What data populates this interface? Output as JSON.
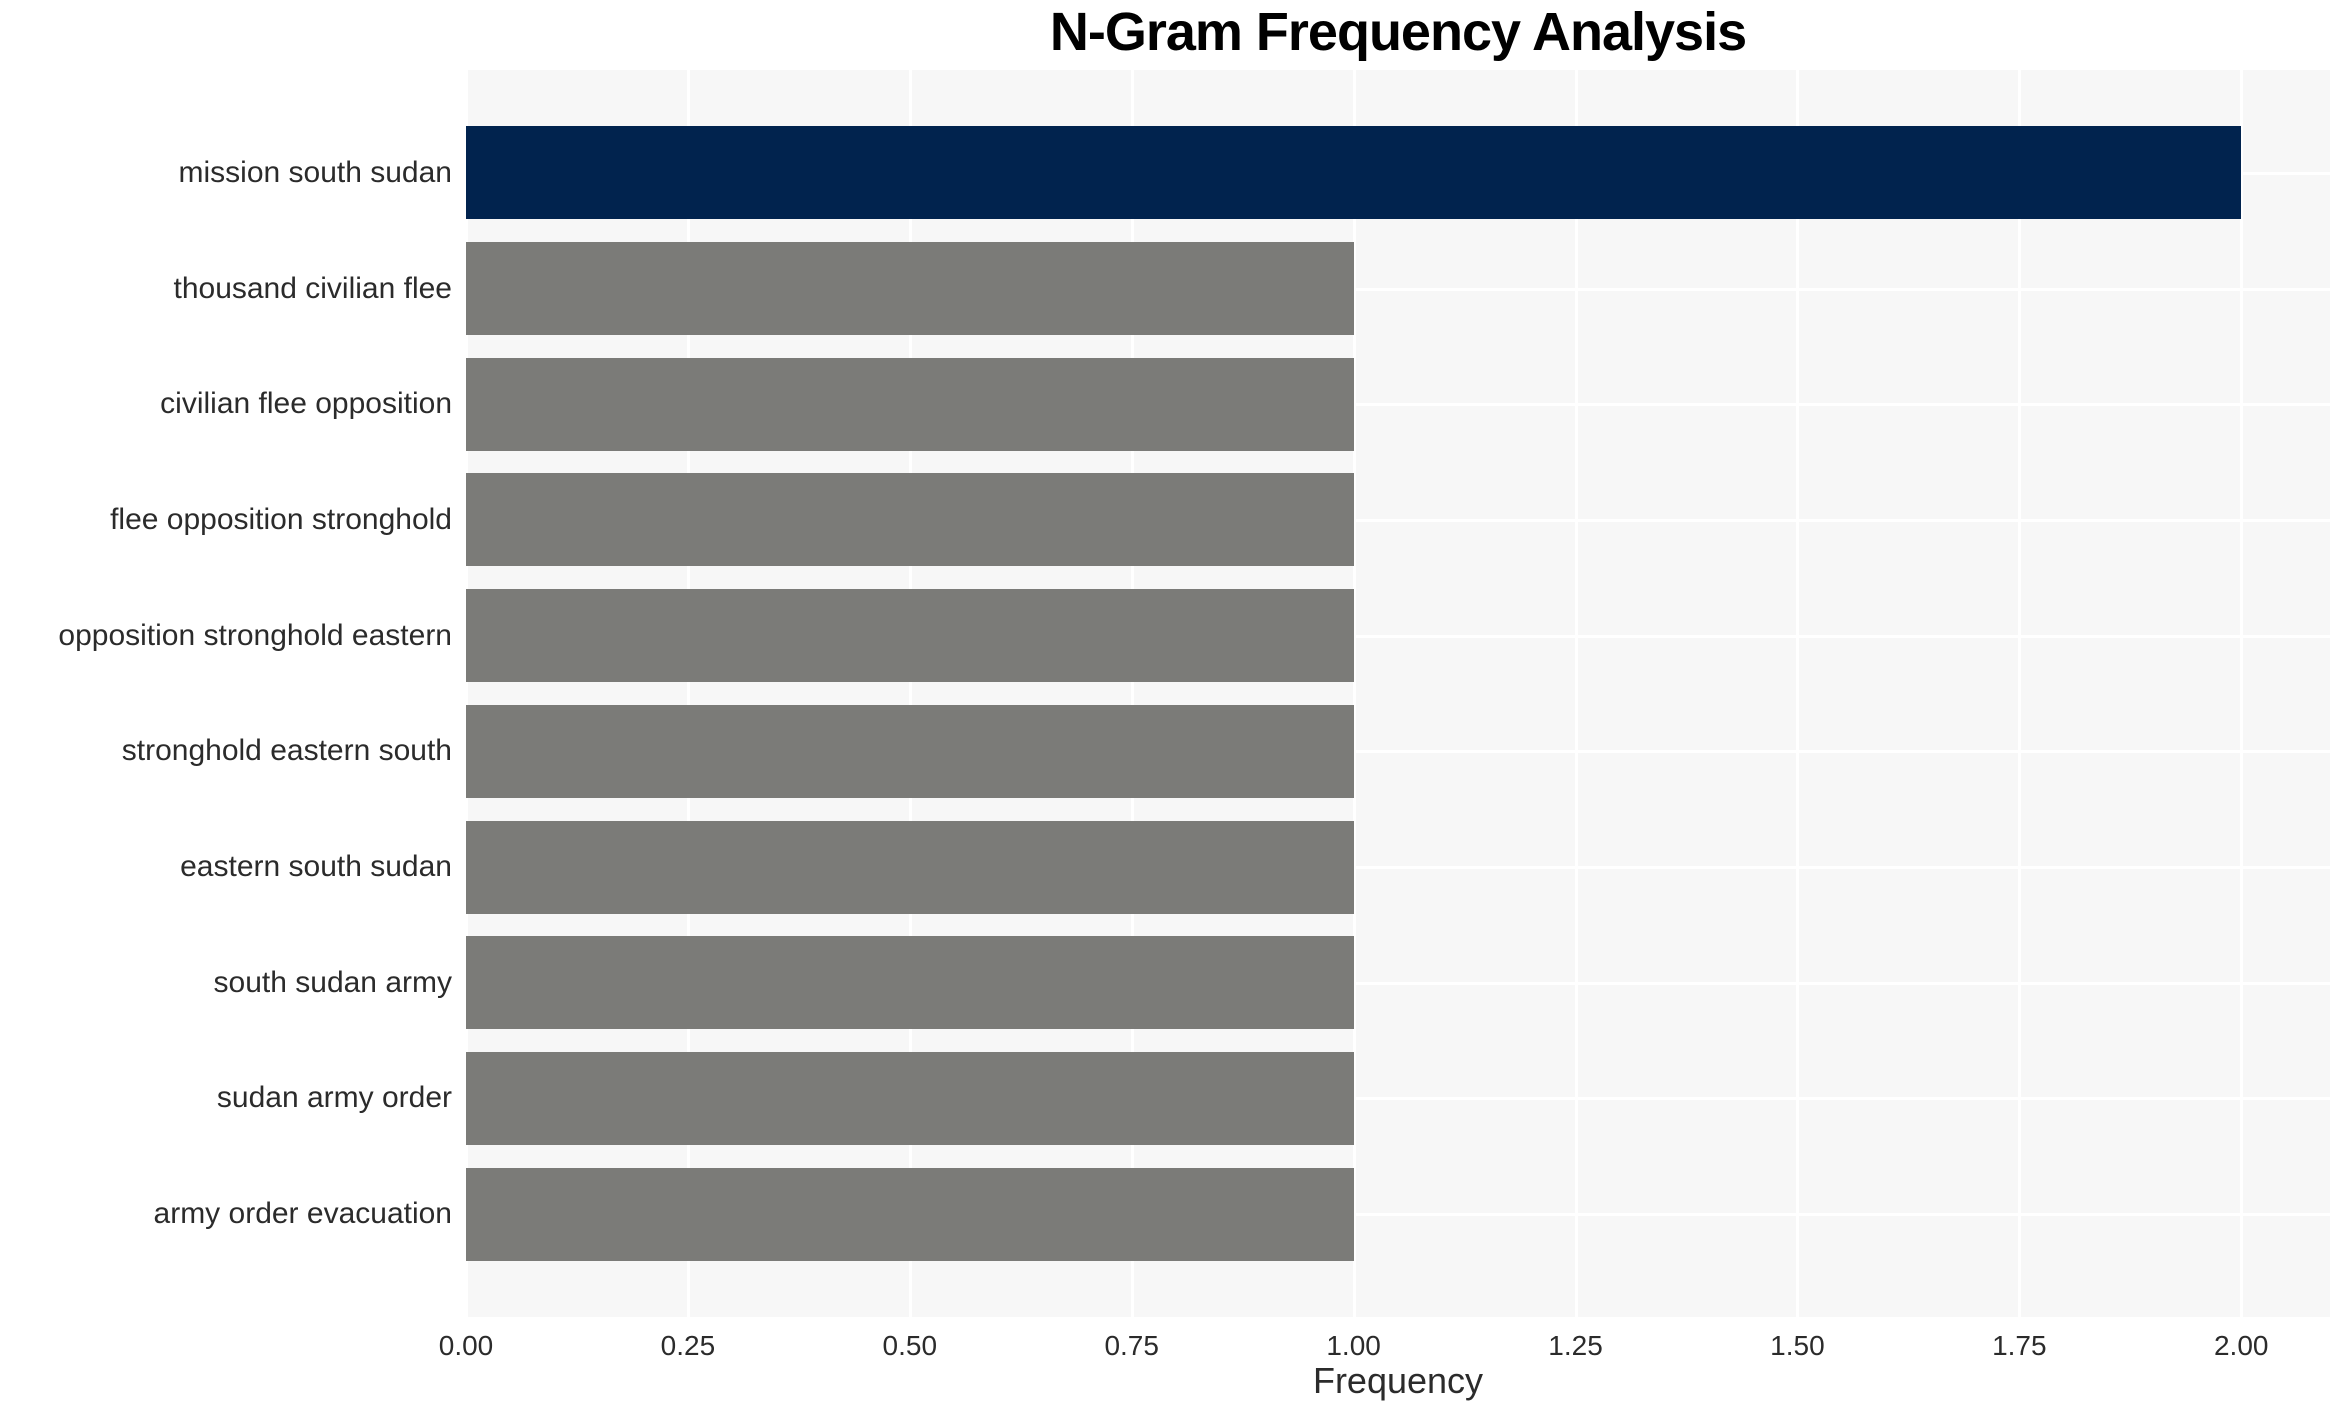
{
  "chart_data": {
    "type": "bar",
    "orientation": "horizontal",
    "title": "N-Gram Frequency Analysis",
    "xlabel": "Frequency",
    "ylabel": "",
    "categories": [
      "mission south sudan",
      "thousand civilian flee",
      "civilian flee opposition",
      "flee opposition stronghold",
      "opposition stronghold eastern",
      "stronghold eastern south",
      "eastern south sudan",
      "south sudan army",
      "sudan army order",
      "army order evacuation"
    ],
    "values": [
      2.0,
      1.0,
      1.0,
      1.0,
      1.0,
      1.0,
      1.0,
      1.0,
      1.0,
      1.0
    ],
    "colors": [
      "#01234e",
      "#7b7b78",
      "#7b7b78",
      "#7b7b78",
      "#7b7b78",
      "#7b7b78",
      "#7b7b78",
      "#7b7b78",
      "#7b7b78",
      "#7b7b78"
    ],
    "xlim": [
      0,
      2.1
    ],
    "x_ticks": [
      0,
      0.25,
      0.5,
      0.75,
      1.0,
      1.25,
      1.5,
      1.75,
      2.0
    ],
    "x_tick_labels": [
      "0.00",
      "0.25",
      "0.50",
      "0.75",
      "1.00",
      "1.25",
      "1.50",
      "1.75",
      "2.00"
    ],
    "grid": true,
    "legend": "none",
    "plot_bg_color": "#f7f7f7",
    "grid_color": "#ffffff",
    "highlight_color": "#01234e",
    "default_bar_color": "#7b7b78",
    "text_color": "#2b2b2b"
  }
}
